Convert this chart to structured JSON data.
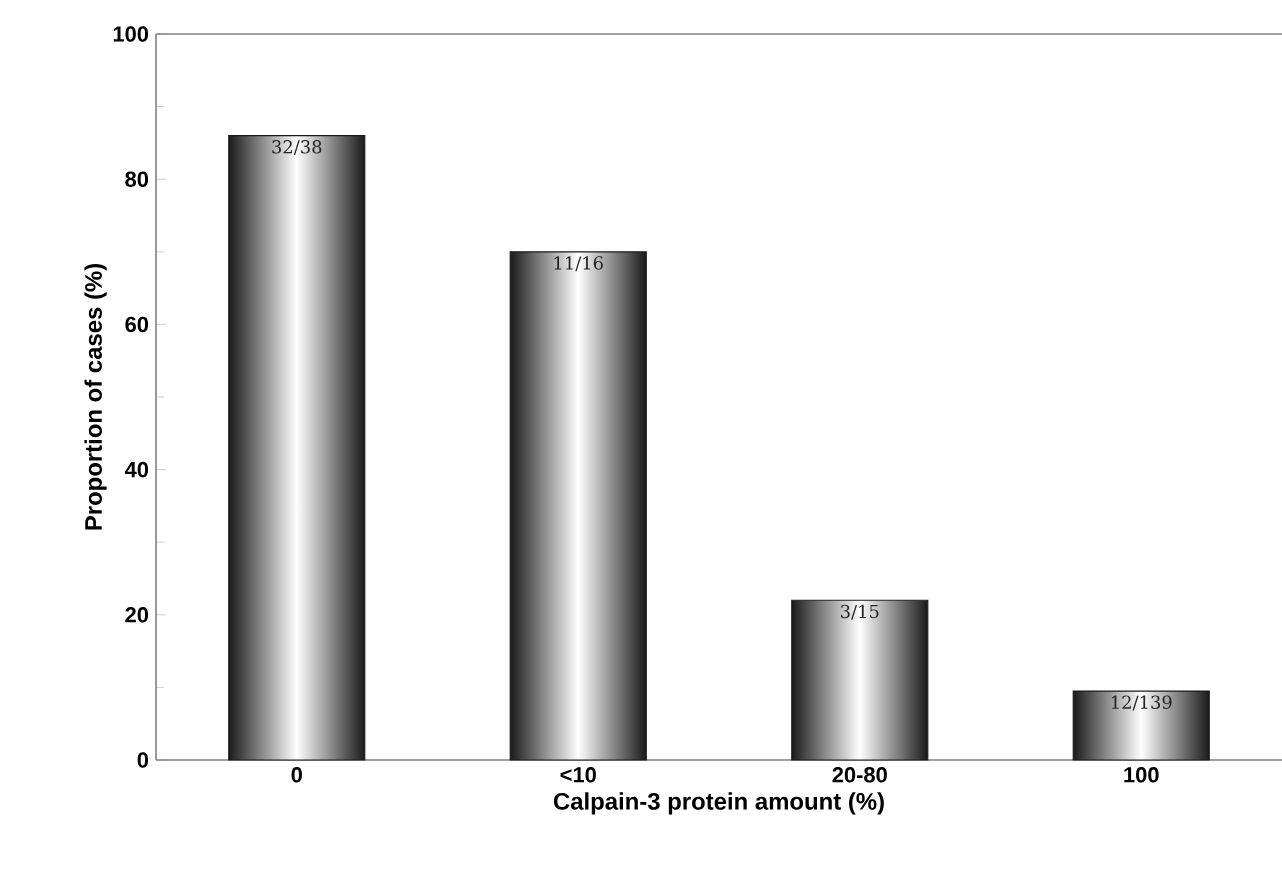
{
  "chart_data": {
    "type": "bar",
    "xlabel": "Calpain-3 protein amount (%)",
    "ylabel": "Proportion of cases (%)",
    "categories": [
      "0",
      "<10",
      "20-80",
      "100"
    ],
    "values": [
      86,
      70,
      22,
      9.5
    ],
    "annotations": [
      {
        "text": "32/38",
        "x": "0",
        "y": 86
      },
      {
        "text": "11/16",
        "x": "<10",
        "y": 70
      },
      {
        "text": "3/15",
        "x": "20-80",
        "y": 22
      },
      {
        "text": "12/139",
        "x": "100",
        "y": 9.5
      }
    ],
    "color": "#1a1a1a",
    "ylim": [
      0,
      100
    ],
    "yticks": [
      0,
      20,
      40,
      60,
      80,
      100
    ],
    "grid": false
  }
}
